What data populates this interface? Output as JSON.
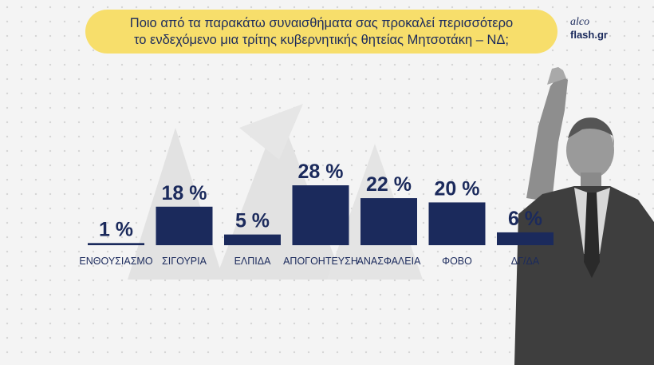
{
  "header": {
    "title_line1": "Ποιο από τα παρακάτω συναισθήματα σας προκαλεί περισσότερο",
    "title_line2": "το ενδεχόμενο μια τρίτης κυβερνητικής θητείας Μητσοτάκη – ΝΔ;"
  },
  "logo": {
    "line1": "alco",
    "line2": "flash.gr"
  },
  "colors": {
    "bar": "#1b2a5c",
    "title_bg": "#f7de6b",
    "text": "#1b2a5c"
  },
  "chart_data": {
    "type": "bar",
    "categories": [
      "ΕΝΘΟΥΣΙΑΣΜΟ",
      "ΣΙΓΟΥΡΙΑ",
      "ΕΛΠΙΔΑ",
      "ΑΠΟΓΟΗΤΕΥΣΗ",
      "ΑΝΑΣΦΑΛΕΙΑ",
      "ΦΟΒΟ",
      "ΔΓ/ΔΑ"
    ],
    "values": [
      1,
      18,
      5,
      28,
      22,
      20,
      6
    ],
    "labels": [
      "1 %",
      "18 %",
      "5 %",
      "28 %",
      "22 %",
      "20 %",
      "6 %"
    ],
    "unit": "%",
    "title": "Ποιο από τα παρακάτω συναισθήματα σας προκαλεί περισσότερο το ενδεχόμενο μια τρίτης κυβερνητικής θητείας Μητσοτάκη – ΝΔ;",
    "xlabel": "",
    "ylabel": "",
    "grid": false
  }
}
